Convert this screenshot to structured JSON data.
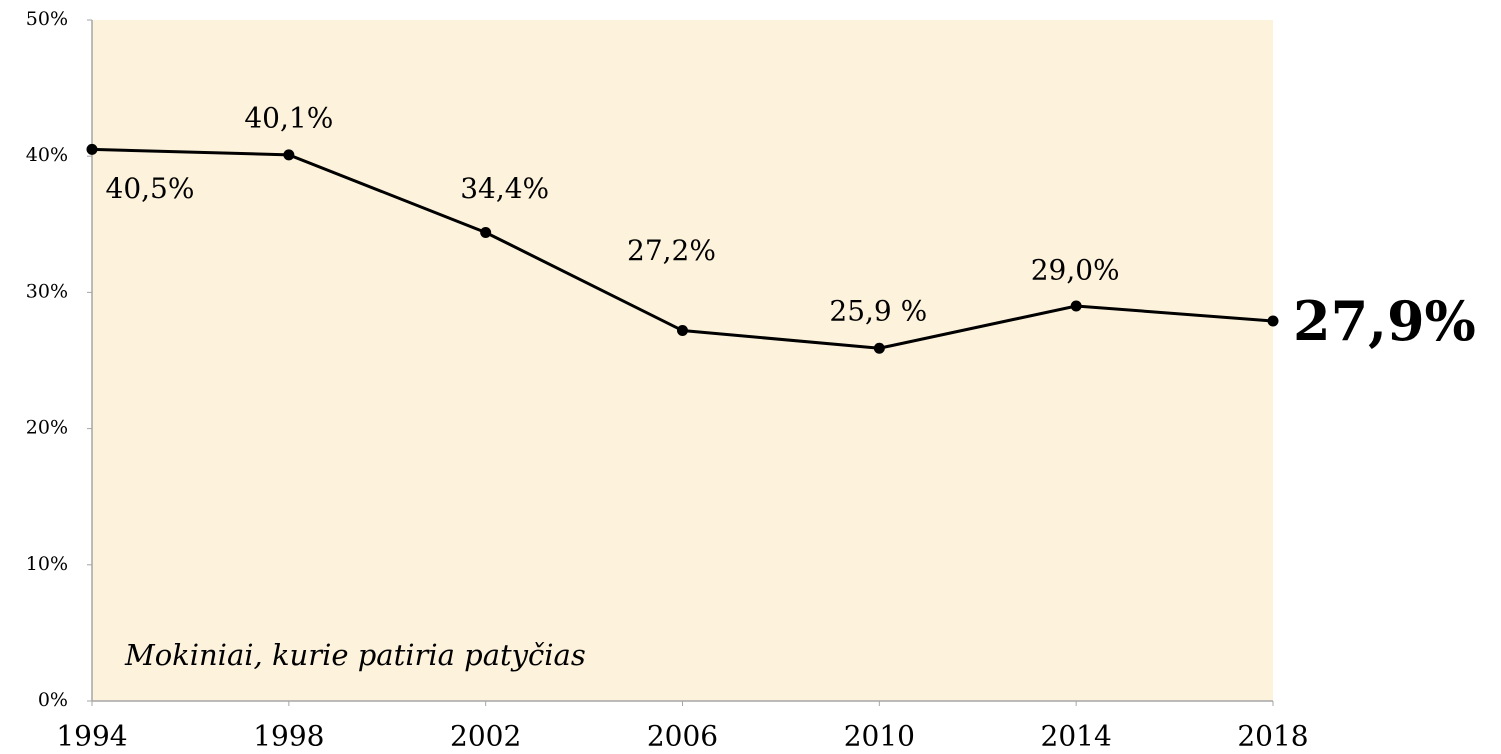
{
  "chart_data": {
    "type": "line",
    "annotation": "Mokiniai, kurie patiria patyčias",
    "x": [
      1994,
      1998,
      2002,
      2006,
      2010,
      2014,
      2018
    ],
    "series": [
      {
        "color": "#000000",
        "values": [
          40.5,
          40.1,
          34.4,
          27.2,
          25.9,
          29.0,
          27.9
        ],
        "value_labels": [
          "40,5%",
          "40,1%",
          "34,4%",
          "27,2%",
          "25,9 %",
          "29,0%",
          "27,9%"
        ]
      }
    ],
    "xlim": [
      1994,
      2018
    ],
    "xticks": [
      1994,
      1998,
      2002,
      2006,
      2010,
      2014,
      2018
    ],
    "ylim": [
      0,
      50
    ],
    "yticks": [
      {
        "value": 0,
        "label": "0%"
      },
      {
        "value": 10,
        "label": "10%"
      },
      {
        "value": 20,
        "label": "20%"
      },
      {
        "value": 30,
        "label": "30%"
      },
      {
        "value": 40,
        "label": "40%"
      },
      {
        "value": 50,
        "label": "50%"
      }
    ],
    "plot_background": "#fdf2dc"
  }
}
